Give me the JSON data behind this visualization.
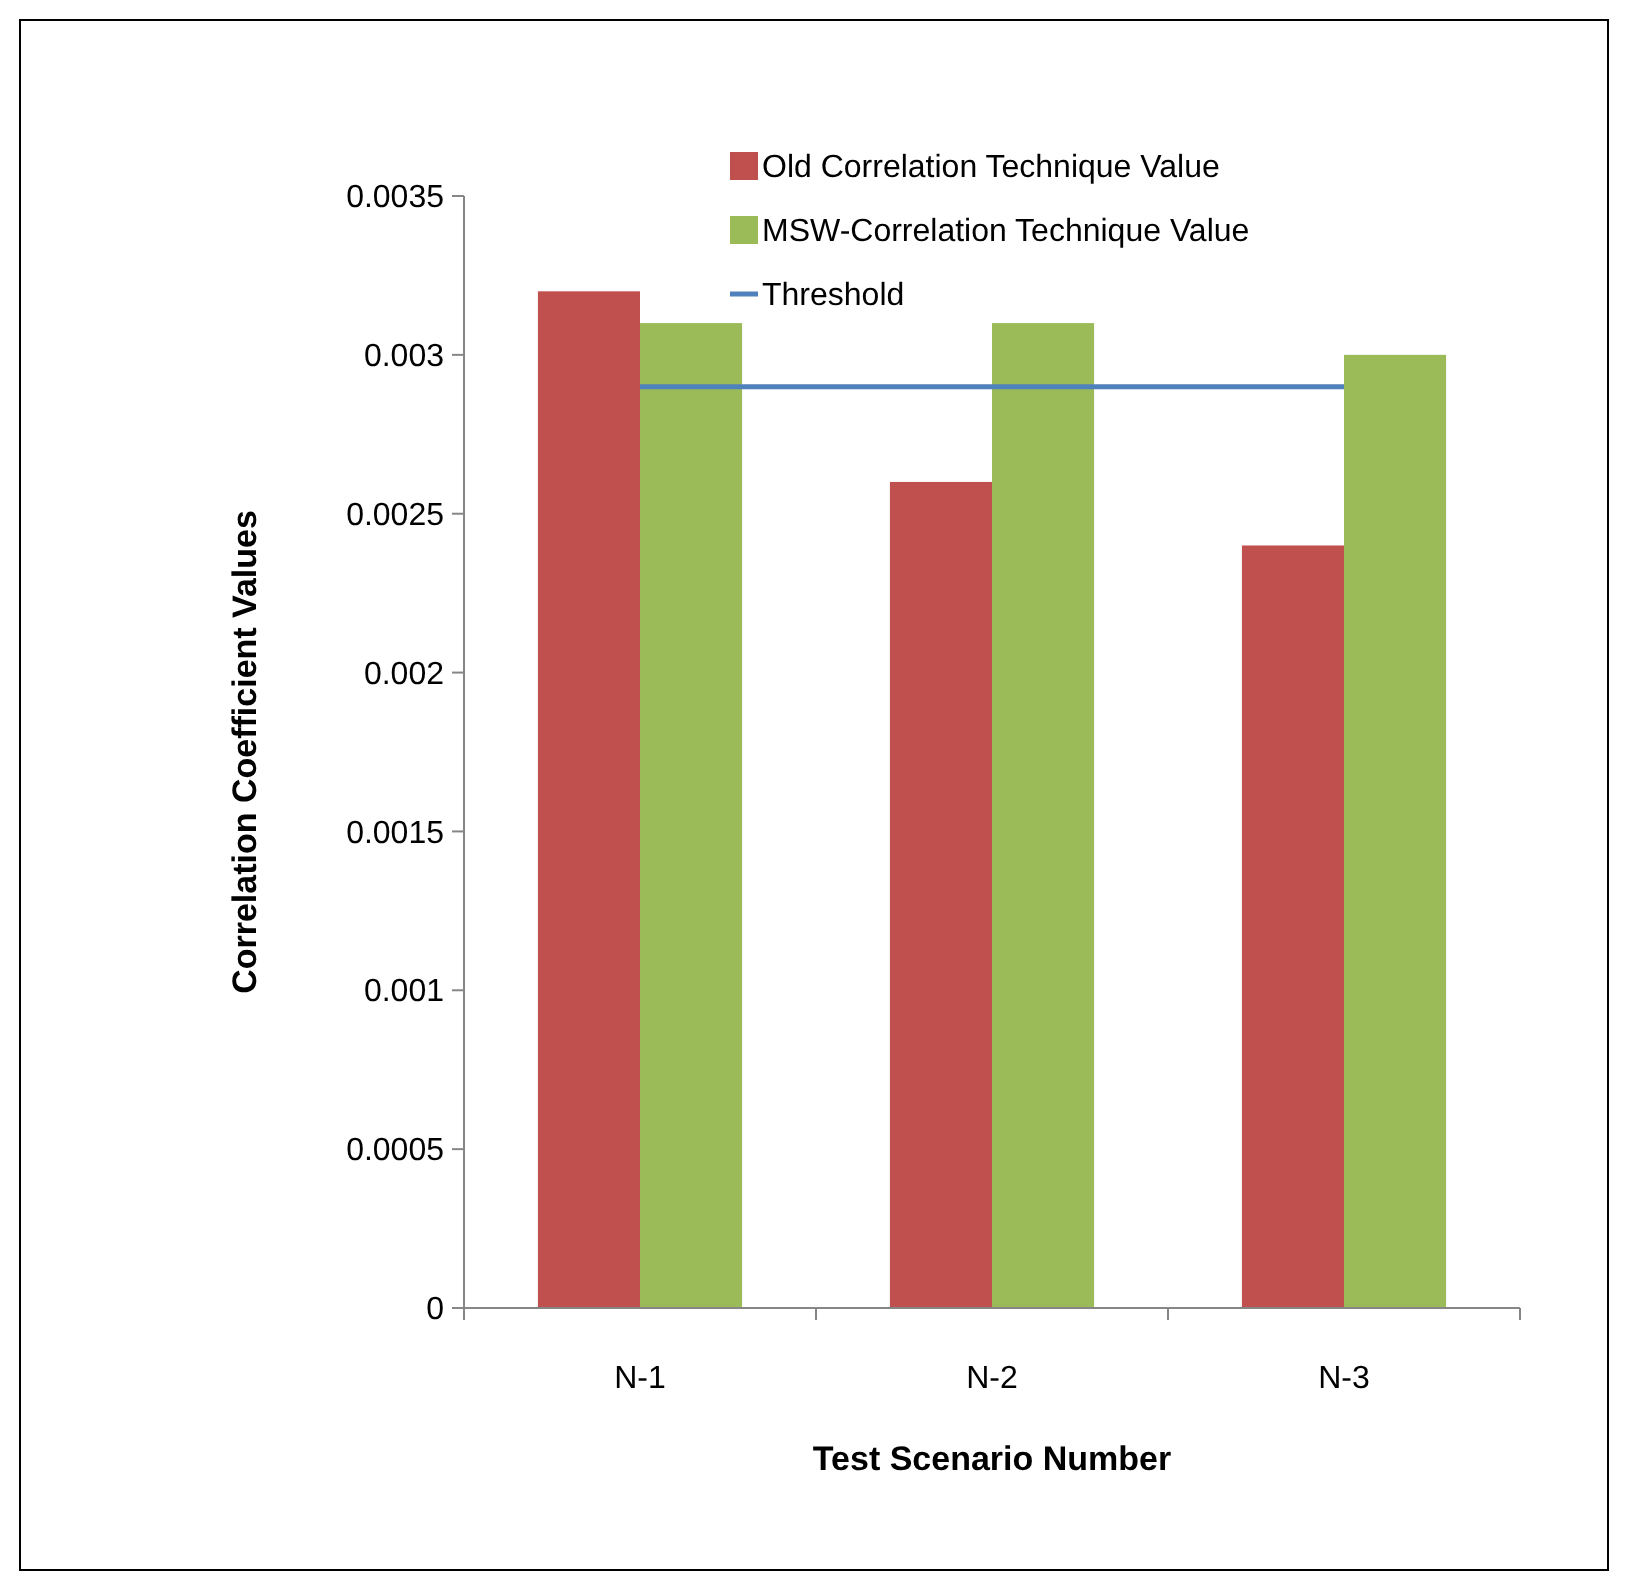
{
  "chart_data": {
    "type": "bar",
    "xlabel": "Test Scenario Number",
    "ylabel": "Correlation Coefficient Values",
    "categories": [
      "N-1",
      "N-2",
      "N-3"
    ],
    "series": [
      {
        "name": "Old Correlation Technique Value",
        "color": "#c0504d",
        "values": [
          0.0032,
          0.0026,
          0.0024
        ]
      },
      {
        "name": "MSW-Correlation Technique Value",
        "color": "#9bbb59",
        "values": [
          0.0031,
          0.0031,
          0.003
        ]
      },
      {
        "name": "Threshold",
        "type": "line",
        "color": "#4f81bd",
        "values": [
          0.0029,
          0.0029,
          0.0029
        ]
      }
    ],
    "ylim": [
      0,
      0.0035
    ],
    "yticks": [
      0,
      0.0005,
      0.001,
      0.0015,
      0.002,
      0.0025,
      0.003,
      0.0035
    ],
    "legend": "top right",
    "grid": false
  }
}
